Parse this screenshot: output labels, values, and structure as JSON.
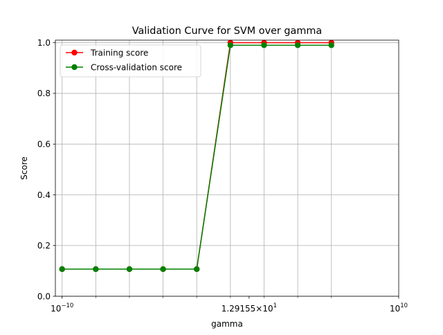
{
  "chart_data": {
    "type": "line",
    "title": "Validation Curve for SVM over gamma",
    "xlabel": "gamma",
    "ylabel": "Score",
    "xscale": "log",
    "x": [
      1e-10,
      1e-08,
      1e-06,
      0.0001,
      0.01,
      1,
      100,
      10000,
      1000000
    ],
    "xlim_exponent": [
      -10.4,
      10
    ],
    "ylim": [
      0,
      1.01
    ],
    "grid": true,
    "legend_position": "top-left",
    "x_tick_labels": [
      {
        "value": 1e-10,
        "base": "10",
        "exp": "−10"
      },
      {
        "value": 12.9155,
        "base": "1.29155×10",
        "exp": "1"
      },
      {
        "value": 10000000000.0,
        "base": "10",
        "exp": "10"
      }
    ],
    "y_ticks": [
      {
        "value": 0.0,
        "label": "0.0"
      },
      {
        "value": 0.2,
        "label": "0.2"
      },
      {
        "value": 0.4,
        "label": "0.4"
      },
      {
        "value": 0.6,
        "label": "0.6"
      },
      {
        "value": 0.8,
        "label": "0.8"
      },
      {
        "value": 1.0,
        "label": "1.0"
      }
    ],
    "series": [
      {
        "name": "Training score",
        "color": "#ff0000",
        "values": [
          0.107,
          0.107,
          0.107,
          0.107,
          0.107,
          1.0,
          1.0,
          1.0,
          1.0
        ]
      },
      {
        "name": "Cross-validation score",
        "color": "#008000",
        "values": [
          0.107,
          0.107,
          0.107,
          0.107,
          0.107,
          0.99,
          0.99,
          0.99,
          0.99
        ]
      }
    ]
  }
}
